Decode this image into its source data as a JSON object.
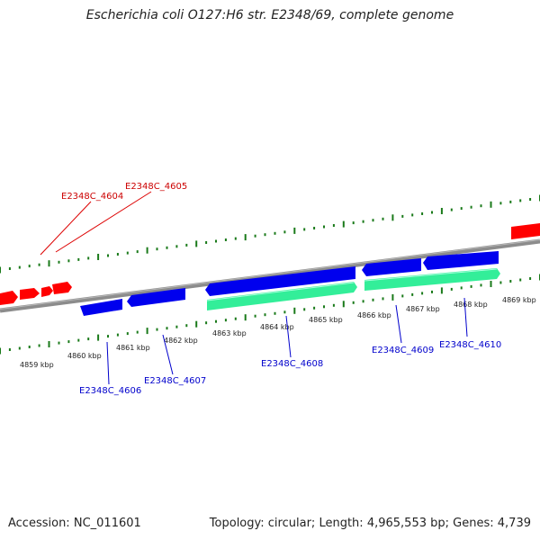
{
  "title": "Escherichia coli O127:H6 str. E2348/69, complete genome",
  "footer": {
    "accession_label": "Accession:",
    "accession": "NC_011601",
    "topology_label": "Topology:",
    "topology": "circular",
    "length_label": "Length:",
    "length": "4,965,553 bp",
    "genes_label": "Genes:",
    "genes": "4,739"
  },
  "colors": {
    "backbone": "#8c8c8c",
    "tick": "#1a7a1a",
    "reverse_gene": "#ff0000",
    "forward_gene": "#0000ee",
    "cds": "#33ee99",
    "label_red": "#cc0000",
    "label_blue": "#0000cc"
  },
  "scale_ticks": [
    "4859 kbp",
    "4860 kbp",
    "4861 kbp",
    "4862 kbp",
    "4863 kbp",
    "4864 kbp",
    "4865 kbp",
    "4866 kbp",
    "4867 kbp",
    "4868 kbp",
    "4869 kbp"
  ],
  "gene_labels": {
    "red": [
      "E2348C_4604",
      "E2348C_4605"
    ],
    "blue": [
      "E2348C_4606",
      "E2348C_4607",
      "E2348C_4608",
      "E2348C_4609",
      "E2348C_4610"
    ]
  }
}
